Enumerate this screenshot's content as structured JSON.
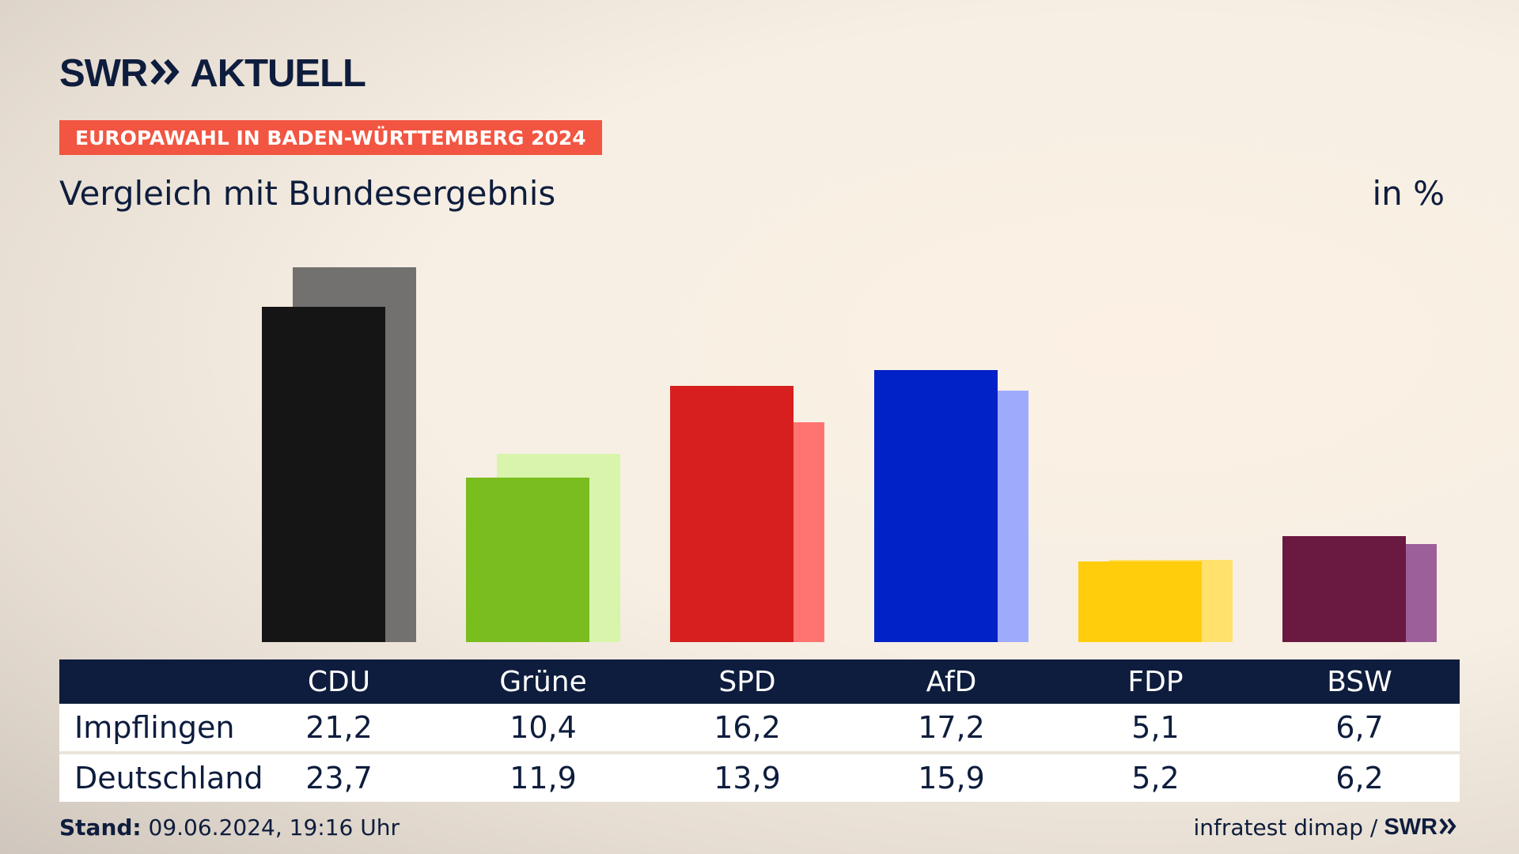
{
  "header": {
    "brand_left": "SWR",
    "brand_right": "AKTUELL",
    "badge": "EUROPAWAHL IN BADEN-WÜRTTEMBERG 2024",
    "subtitle": "Vergleich mit Bundesergebnis",
    "unit": "in %"
  },
  "chart_data": {
    "type": "bar",
    "categories": [
      "CDU",
      "Grüne",
      "SPD",
      "AfD",
      "FDP",
      "BSW"
    ],
    "series": [
      {
        "name": "Impflingen",
        "values": [
          21.2,
          10.4,
          16.2,
          17.2,
          5.1,
          6.7
        ]
      },
      {
        "name": "Deutschland",
        "values": [
          23.7,
          11.9,
          13.9,
          15.9,
          5.2,
          6.2
        ]
      }
    ],
    "display_values": {
      "Impflingen": [
        "21,2",
        "10,4",
        "16,2",
        "17,2",
        "5,1",
        "6,7"
      ],
      "Deutschland": [
        "23,7",
        "11,9",
        "13,9",
        "15,9",
        "5,2",
        "6,2"
      ]
    },
    "colors": {
      "primary": [
        "#151515",
        "#79bd1e",
        "#d71f20",
        "#0022c7",
        "#ffcd0c",
        "#6a1940"
      ],
      "secondary": [
        "#727170",
        "#d8f5ab",
        "#ff7470",
        "#9eabfd",
        "#ffe16c",
        "#9c5f9a"
      ]
    },
    "ylim": [
      0,
      24
    ],
    "grid": false,
    "legend": "table-below"
  },
  "table": {
    "row_labels": [
      "Impflingen",
      "Deutschland"
    ]
  },
  "footer": {
    "stand_label": "Stand:",
    "stand_value": " 09.06.2024, 19:16 Uhr",
    "source": "infratest dimap /",
    "source_brand": "SWR"
  }
}
